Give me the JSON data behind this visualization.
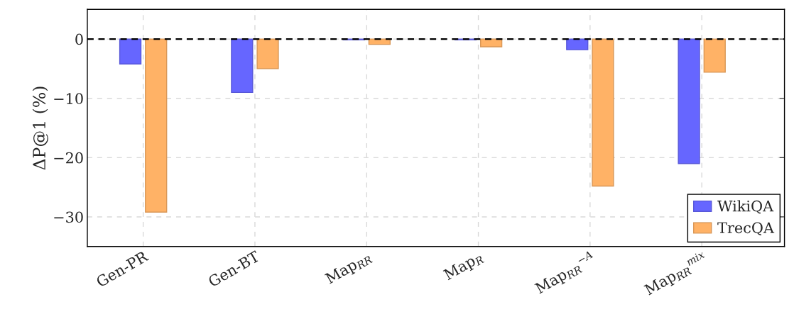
{
  "chart_data": {
    "type": "bar",
    "ylabel": "ΔP@1 (%)",
    "categories": [
      "Gen-PR",
      "Gen-BT",
      "Map$_{RR}$",
      "Map$_{R}$",
      "Map$_{RR}$$^{−A}$",
      "Map$_{RR}$$^{mix}$"
    ],
    "series": [
      {
        "name": "WikiQA",
        "color": "#6666ff",
        "values": [
          -4.2,
          -9.0,
          -0.1,
          -0.1,
          -1.8,
          -21.0
        ]
      },
      {
        "name": "TrecQA",
        "color": "#ffb266",
        "values": [
          -29.2,
          -5.0,
          -0.9,
          -1.3,
          -24.8,
          -5.6
        ]
      }
    ],
    "ylim": [
      -35,
      5
    ],
    "yticks": [
      {
        "value": -30,
        "label": "−30"
      },
      {
        "value": -20,
        "label": "−20"
      },
      {
        "value": -10,
        "label": "−10"
      },
      0
    ],
    "ref_lines": [
      {
        "axis": "y",
        "value": 0,
        "color": "#000000",
        "line_style": "dashed"
      }
    ],
    "grid": true,
    "legend": "bottom right"
  }
}
